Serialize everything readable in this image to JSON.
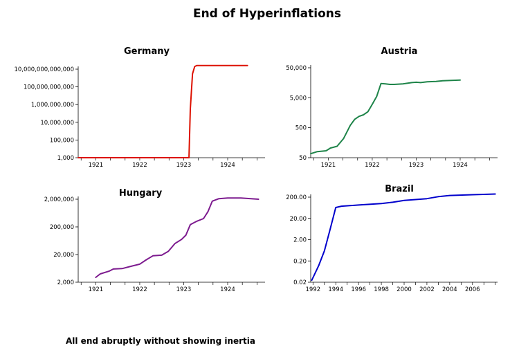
{
  "title": "End of Hyperinflations",
  "caption": "All end abruptly without showing inertia",
  "chart_data": [
    {
      "type": "line",
      "title": "Germany",
      "yscale": "log",
      "color": "#dd1100",
      "xlim": [
        1920.6,
        1924.85
      ],
      "ylim": [
        1000,
        10000000000000
      ],
      "xticks": [
        1921,
        1922,
        1923,
        1924
      ],
      "xtick_labels": [
        "1921",
        "1922",
        "1923",
        "1924"
      ],
      "yticks": [
        1000,
        100000,
        10000000,
        1000000000,
        100000000000,
        10000000000000
      ],
      "ytick_labels": [
        "1,000",
        "100,000",
        "10,000,000",
        "1,000,000,000",
        "100,000,000,000",
        "10,000,000,000,000"
      ],
      "series": [
        {
          "x": [
            1920.6,
            1923.12,
            1923.15,
            1923.2,
            1923.25,
            1923.3,
            1923.35,
            1924.45
          ],
          "y": [
            1000,
            1000,
            300000000,
            3000000000000,
            20000000000000,
            26000000000000,
            26000000000000,
            26000000000000
          ]
        }
      ]
    },
    {
      "type": "line",
      "title": "Austria",
      "yscale": "log",
      "color": "#1e8449",
      "xlim": [
        1920.6,
        1924.85
      ],
      "ylim": [
        50,
        50000
      ],
      "xticks": [
        1921,
        1922,
        1923,
        1924
      ],
      "xtick_labels": [
        "1921",
        "1922",
        "1923",
        "1924"
      ],
      "yticks": [
        50,
        500,
        5000,
        50000
      ],
      "ytick_labels": [
        "50",
        "500",
        "5,000",
        "50,000"
      ],
      "series": [
        {
          "x": [
            1920.6,
            1920.75,
            1920.95,
            1921.05,
            1921.2,
            1921.35,
            1921.5,
            1921.6,
            1921.7,
            1921.8,
            1921.9,
            1922.0,
            1922.1,
            1922.2,
            1922.3,
            1922.4,
            1922.5,
            1922.7,
            1922.9,
            1923.0,
            1923.1,
            1923.25,
            1923.45,
            1923.6,
            1923.8,
            1924.0
          ],
          "y": [
            68,
            80,
            85,
            105,
            120,
            220,
            600,
            950,
            1200,
            1350,
            1700,
            3000,
            5500,
            15000,
            14500,
            14000,
            14000,
            14500,
            16000,
            16500,
            16000,
            17000,
            17500,
            18500,
            19000,
            19500
          ]
        }
      ]
    },
    {
      "type": "line",
      "title": "Hungary",
      "yscale": "log",
      "color": "#7d1b8f",
      "xlim": [
        1920.6,
        1924.85
      ],
      "ylim": [
        2000,
        2000000
      ],
      "xticks": [
        1921,
        1922,
        1923,
        1924
      ],
      "xtick_labels": [
        "1921",
        "1922",
        "1923",
        "1924"
      ],
      "yticks": [
        2000,
        20000,
        200000,
        2000000
      ],
      "ytick_labels": [
        "2,000",
        "20,000",
        "200,000",
        "2,000,000"
      ],
      "series": [
        {
          "x": [
            1921.0,
            1921.1,
            1921.3,
            1921.4,
            1921.6,
            1921.8,
            1922.0,
            1922.15,
            1922.3,
            1922.5,
            1922.65,
            1922.8,
            1922.95,
            1923.05,
            1923.15,
            1923.3,
            1923.45,
            1923.55,
            1923.65,
            1923.8,
            1924.0,
            1924.3,
            1924.7
          ],
          "y": [
            3000,
            4000,
            5000,
            6000,
            6200,
            7500,
            9000,
            13000,
            18000,
            19000,
            26000,
            50000,
            70000,
            100000,
            240000,
            320000,
            400000,
            700000,
            1700000,
            2100000,
            2200000,
            2200000,
            2000000
          ]
        }
      ]
    },
    {
      "type": "line",
      "title": "Brazil",
      "yscale": "log",
      "color": "#0000cc",
      "xlim": [
        1991.8,
        2008.2
      ],
      "ylim": [
        0.02,
        200
      ],
      "xticks": [
        1992,
        1994,
        1996,
        1998,
        2000,
        2002,
        2004,
        2006
      ],
      "xtick_labels": [
        "1992",
        "1994",
        "1996",
        "1998",
        "2000",
        "2002",
        "2004",
        "2006"
      ],
      "yticks": [
        0.02,
        0.2,
        2,
        20,
        200
      ],
      "ytick_labels": [
        "0.02",
        "0.20",
        "2.00",
        "20.00",
        "200.00"
      ],
      "series": [
        {
          "x": [
            1991.9,
            1992.5,
            1993.0,
            1993.5,
            1994.0,
            1994.5,
            1996.0,
            1998.0,
            1999.0,
            2000.0,
            2002.0,
            2003.0,
            2004.0,
            2006.0,
            2008.0
          ],
          "y": [
            0.025,
            0.12,
            0.6,
            6,
            65,
            75,
            85,
            100,
            115,
            140,
            170,
            210,
            240,
            260,
            280
          ]
        }
      ]
    }
  ]
}
